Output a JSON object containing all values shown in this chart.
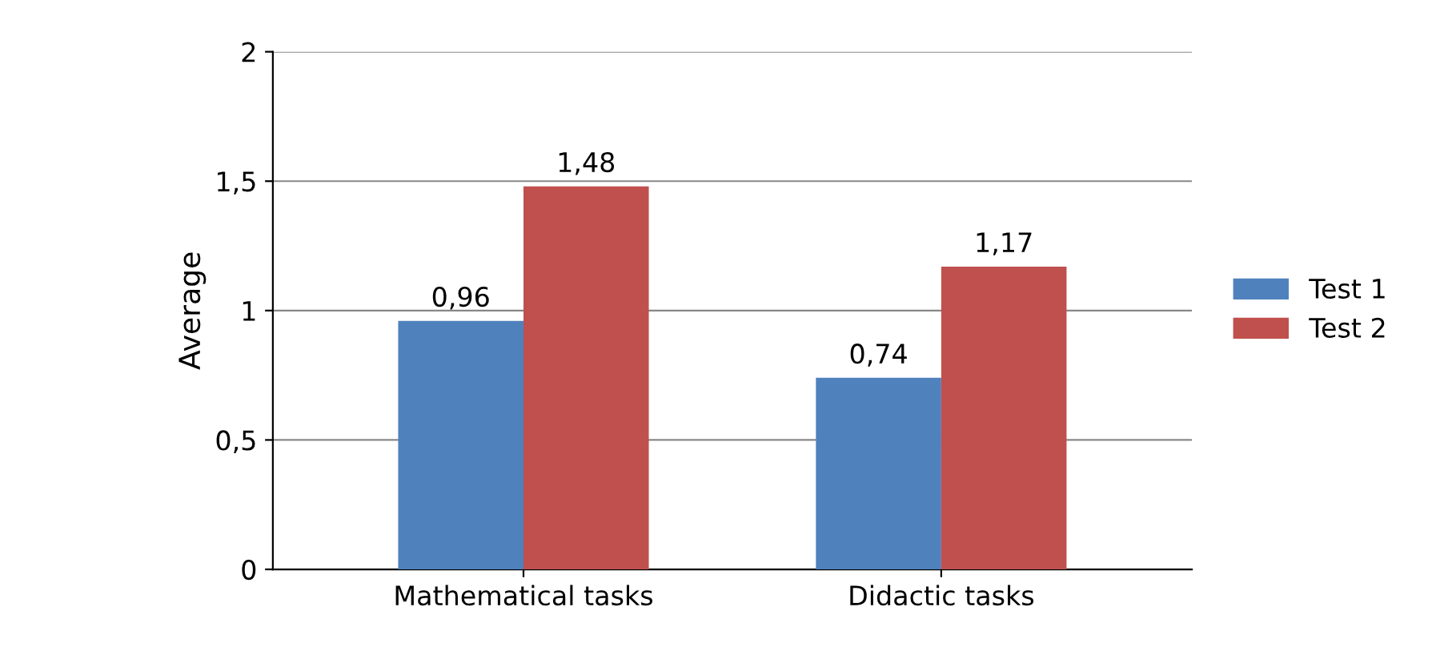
{
  "chart_data": {
    "type": "bar",
    "ylabel": "Average",
    "categories": [
      "Mathematical tasks",
      "Didactic tasks"
    ],
    "series": [
      {
        "name": "Test 1",
        "color": "#4f81bd",
        "values": [
          0.96,
          0.74
        ],
        "value_labels": [
          "0,96",
          "0,74"
        ]
      },
      {
        "name": "Test 2",
        "color": "#c0504d",
        "values": [
          1.48,
          1.17
        ],
        "value_labels": [
          "1,48",
          "1,17"
        ]
      }
    ],
    "ylim": [
      0,
      2
    ],
    "yticks": [
      0,
      {
        "value": 0.5,
        "label": "0,5"
      },
      1,
      {
        "value": 1.5,
        "label": "1,5"
      },
      2
    ],
    "grid": "y",
    "legend": "right"
  }
}
